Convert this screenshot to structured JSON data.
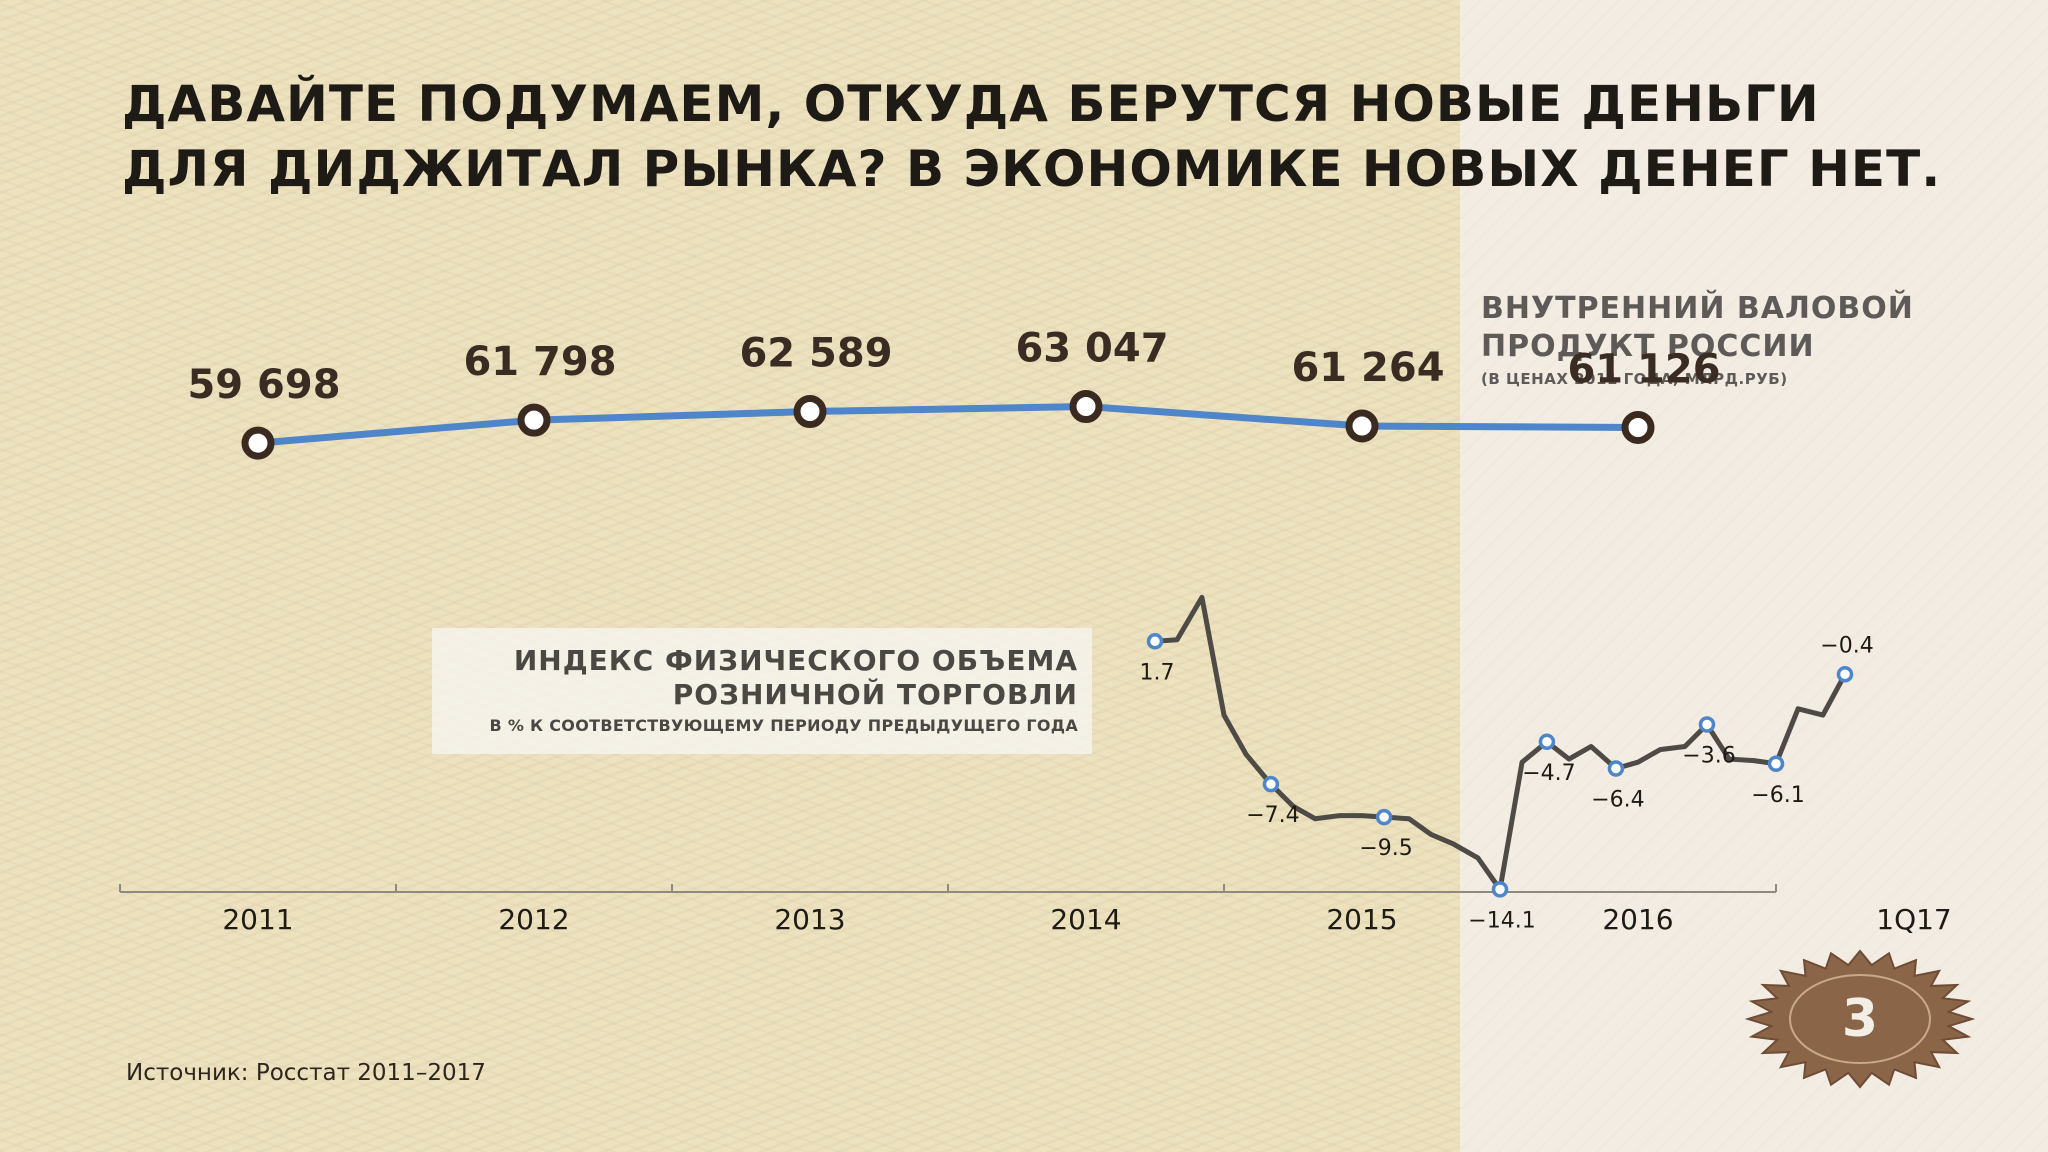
{
  "title_lines": [
    "ДАВАЙТЕ ПОДУМАЕМ, ОТКУДА БЕРУТСЯ НОВЫЕ ДЕНЬГИ",
    "ДЛЯ ДИДЖИТАЛ РЫНКА? В ЭКОНОМИКЕ НОВЫХ ДЕНЕГ НЕТ."
  ],
  "page_number": "3",
  "source": "Источник: Росстат 2011–2017",
  "colors": {
    "gdp_line": "#4f86c9",
    "gdp_marker_stroke": "#3b2a1f",
    "retail_line": "#4e4a46",
    "retail_marker_stroke": "#4f86c9",
    "axis": "#8f8a80",
    "badge": "#8b6548"
  },
  "chart_data": [
    {
      "type": "line",
      "title_lines": [
        "ВНУТРЕННИЙ ВАЛОВОЙ",
        "ПРОДУКТ РОССИИ"
      ],
      "subtitle": "(В ЦЕНАХ 2011 ГОДА, МЛРД.РУБ)",
      "categories": [
        "2011",
        "2012",
        "2013",
        "2014",
        "2015",
        "2016"
      ],
      "values": [
        59698,
        61798,
        62589,
        63047,
        61264,
        61126
      ],
      "value_labels": [
        "59 698",
        "61 798",
        "62 589",
        "63 047",
        "61 264",
        "61 126"
      ],
      "ylim": [
        55000,
        66000
      ]
    },
    {
      "type": "line",
      "title_lines": [
        "ИНДЕКС ФИЗИЧЕСКОГО ОБЪЕМА",
        "РОЗНИЧНОЙ ТОРГОВЛИ"
      ],
      "subtitle": "В % К СООТВЕТСТВУЮЩЕМУ ПЕРИОДУ ПРЕДЫДУЩЕГО ГОДА",
      "x_axis_categories": [
        "2011",
        "2012",
        "2013",
        "2014",
        "2015",
        "2016",
        "1Q17"
      ],
      "points": [
        {
          "x": 2014.25,
          "y": 1.7,
          "label": "1.7"
        },
        {
          "x": 2014.33,
          "y": 1.8
        },
        {
          "x": 2014.42,
          "y": 4.5
        },
        {
          "x": 2014.5,
          "y": -3.0
        },
        {
          "x": 2014.58,
          "y": -5.5
        },
        {
          "x": 2014.67,
          "y": -7.4,
          "label": "−7.4"
        },
        {
          "x": 2014.75,
          "y": -8.8
        },
        {
          "x": 2014.83,
          "y": -9.6
        },
        {
          "x": 2014.92,
          "y": -9.4
        },
        {
          "x": 2015.0,
          "y": -9.4
        },
        {
          "x": 2015.08,
          "y": -9.5,
          "label": "−9.5"
        },
        {
          "x": 2015.17,
          "y": -9.6
        },
        {
          "x": 2015.25,
          "y": -10.6
        },
        {
          "x": 2015.33,
          "y": -11.2
        },
        {
          "x": 2015.42,
          "y": -12.1
        },
        {
          "x": 2015.5,
          "y": -14.1,
          "label": "−14.1"
        },
        {
          "x": 2015.58,
          "y": -6.0
        },
        {
          "x": 2015.67,
          "y": -4.7,
          "label": "−4.7"
        },
        {
          "x": 2015.75,
          "y": -5.8
        },
        {
          "x": 2015.83,
          "y": -5.0
        },
        {
          "x": 2015.92,
          "y": -6.4,
          "label": "−6.4"
        },
        {
          "x": 2016.0,
          "y": -6.0
        },
        {
          "x": 2016.08,
          "y": -5.2
        },
        {
          "x": 2016.17,
          "y": -5.0
        },
        {
          "x": 2016.25,
          "y": -3.6,
          "label": "−3.6"
        },
        {
          "x": 2016.33,
          "y": -5.8
        },
        {
          "x": 2016.42,
          "y": -5.9
        },
        {
          "x": 2016.5,
          "y": -6.1,
          "label": "−6.1"
        },
        {
          "x": 2016.58,
          "y": -2.6
        },
        {
          "x": 2016.67,
          "y": -3.0
        },
        {
          "x": 2016.75,
          "y": -0.4,
          "label": "−0.4"
        }
      ],
      "ylim": [
        -16,
        6
      ]
    }
  ]
}
